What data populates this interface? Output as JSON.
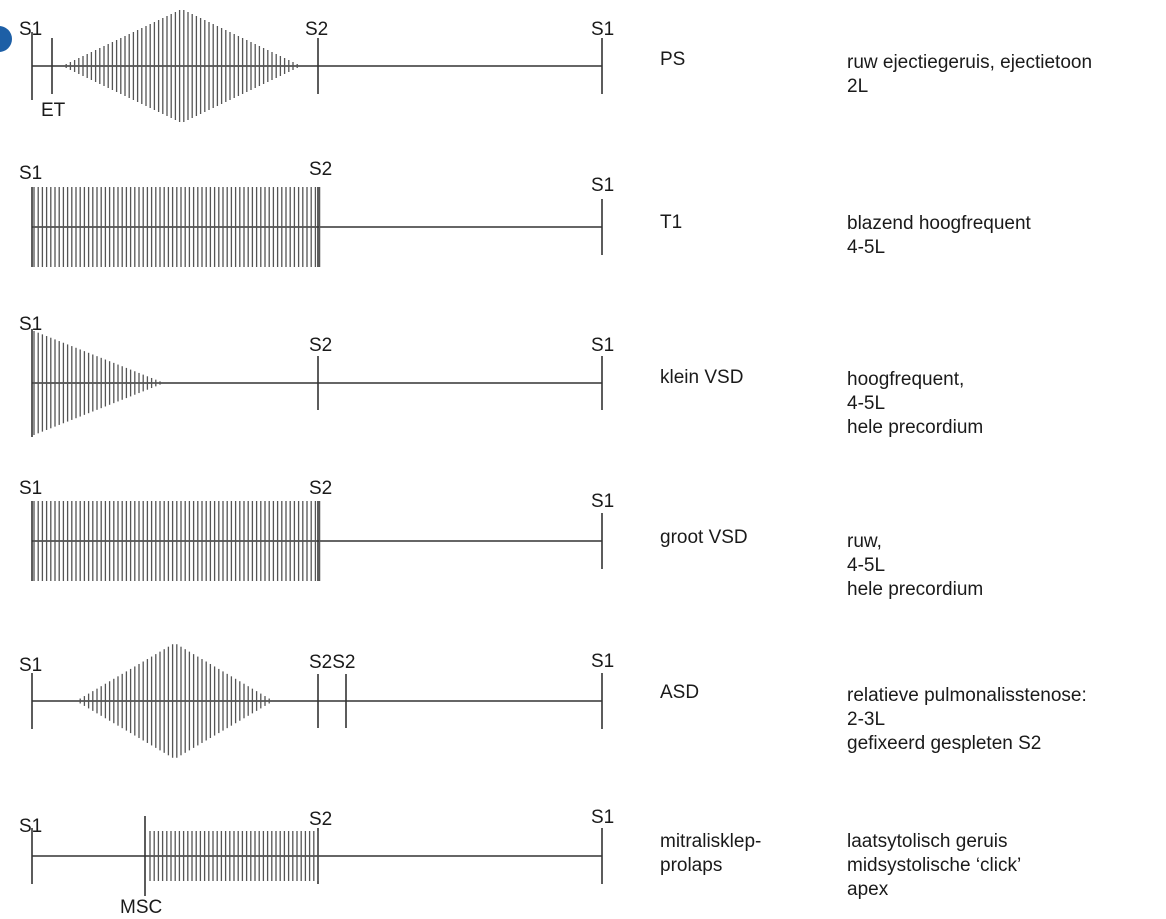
{
  "rows": [
    {
      "id": "ps",
      "markers": {
        "s1_start": "S1",
        "s2": "S2",
        "s1_end": "S1",
        "extra": "ET"
      },
      "name": [
        "PS"
      ],
      "description": [
        "ruw ejectiegeruis, ejectietoon",
        "2L"
      ]
    },
    {
      "id": "t1",
      "markers": {
        "s1_start": "S1",
        "s2": "S2",
        "s1_end": "S1"
      },
      "name": [
        "T1"
      ],
      "description": [
        "blazend hoogfrequent",
        "4-5L"
      ]
    },
    {
      "id": "klein-vsd",
      "markers": {
        "s1_start": "S1",
        "s2": "S2",
        "s1_end": "S1"
      },
      "name": [
        "klein VSD"
      ],
      "description": [
        "hoogfrequent,",
        "4-5L",
        "hele precordium"
      ]
    },
    {
      "id": "groot-vsd",
      "markers": {
        "s1_start": "S1",
        "s2": "S2",
        "s1_end": "S1"
      },
      "name": [
        "groot VSD"
      ],
      "description": [
        "ruw,",
        "4-5L",
        "hele precordium"
      ]
    },
    {
      "id": "asd",
      "markers": {
        "s1_start": "S1",
        "s2": "S2S2",
        "s1_end": "S1"
      },
      "name": [
        "ASD"
      ],
      "description": [
        "relatieve pulmonalisstenose:",
        "2-3L",
        "gefixeerd gespleten S2"
      ]
    },
    {
      "id": "mitralisklep",
      "markers": {
        "s1_start": "S1",
        "s2": "S2",
        "s1_end": "S1",
        "extra": "MSC"
      },
      "name": [
        "mitralisklep-",
        "prolaps"
      ],
      "description": [
        "laatsytolisch geruis",
        "midsystolische ‘click’",
        "apex"
      ]
    }
  ],
  "colors": {
    "line": "#333333",
    "murmur": "#555555",
    "badge": "#1d5fa6"
  }
}
